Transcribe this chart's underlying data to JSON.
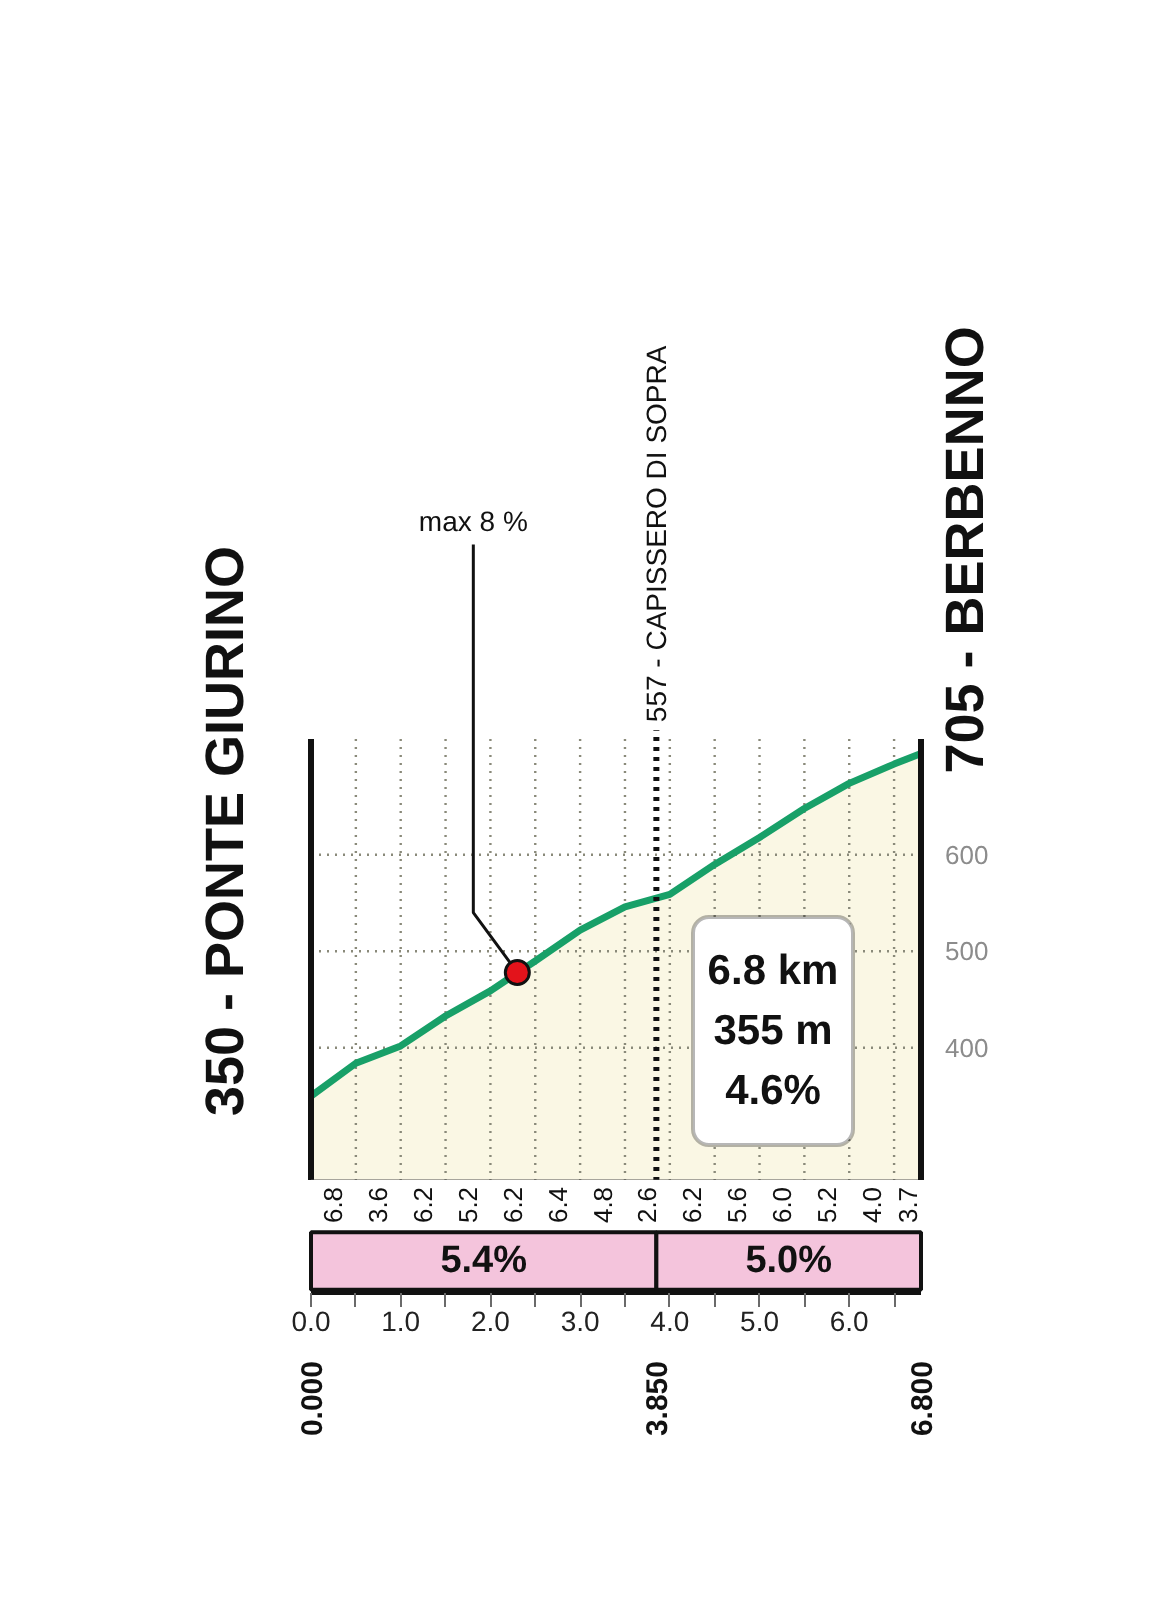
{
  "chart_data": [
    {
      "type": "area",
      "x": [
        0,
        0.5,
        1,
        1.5,
        2,
        2.5,
        3,
        3.5,
        4,
        4.5,
        5,
        5.5,
        6,
        6.5,
        6.8
      ],
      "values": [
        350,
        384,
        402,
        433,
        459,
        490,
        522,
        546,
        559,
        590,
        618,
        648,
        674,
        694,
        705
      ],
      "color": "#18a068",
      "xlim": [
        0,
        6.8
      ],
      "ylim": [
        262,
        720
      ],
      "xticks": [
        {
          "value": 0,
          "label": null
        },
        {
          "value": 0.5,
          "label": null
        },
        {
          "value": 1,
          "label": null
        },
        {
          "value": 1.5,
          "label": null
        },
        {
          "value": 2,
          "label": null
        },
        {
          "value": 2.5,
          "label": null
        },
        {
          "value": 3,
          "label": null
        },
        {
          "value": 3.5,
          "label": null
        },
        {
          "value": 4,
          "label": null
        },
        {
          "value": 4.5,
          "label": null
        },
        {
          "value": 5,
          "label": null
        },
        {
          "value": 5.5,
          "label": null
        },
        {
          "value": 6,
          "label": null
        },
        {
          "value": 6.5,
          "label": null
        }
      ],
      "yticks": [
        400,
        500,
        600
      ],
      "tick_labels": "y",
      "grid": true,
      "ref_lines": [
        {
          "axis": "x",
          "value": 0,
          "label": "350 - PONTE GIURINO"
        },
        {
          "axis": "x",
          "value": 3.85,
          "label": "557 - CAPISSERO DI SOPRA",
          "line_style": "dotted"
        }
      ],
      "annotations": [
        {
          "text": "max 8 %",
          "x": 2.3,
          "y": 478
        },
        {
          "text": "705 - BERBENNO",
          "x": 6.8,
          "y": 705
        },
        "6.8 km",
        "355 m",
        "4.6%"
      ]
    },
    {
      "type": "bar",
      "orientation": "horizontal",
      "stacked": true,
      "categories": [
        null
      ],
      "series": [
        {
          "color": "#f4c4dc",
          "values": [
            3.85
          ]
        },
        {
          "color": "#f4c4dc",
          "values": [
            2.95
          ]
        }
      ],
      "xlim": [
        0,
        6.8
      ],
      "xticks": [
        {
          "value": 0,
          "label": "0.0"
        },
        {
          "value": 0.5,
          "label": null
        },
        {
          "value": 1,
          "label": "1.0"
        },
        {
          "value": 1.5,
          "label": null
        },
        {
          "value": 2,
          "label": "2.0"
        },
        {
          "value": 2.5,
          "label": null
        },
        {
          "value": 3,
          "label": "3.0"
        },
        {
          "value": 3.5,
          "label": null
        },
        {
          "value": 4,
          "label": "4.0"
        },
        {
          "value": 4.5,
          "label": null
        },
        {
          "value": 5,
          "label": "5.0"
        },
        {
          "value": 5.5,
          "label": null
        },
        {
          "value": 6,
          "label": "6.0"
        },
        {
          "value": 6.5,
          "label": null
        }
      ],
      "x2lim": [
        0,
        6.8
      ],
      "x2ticks": [
        {
          "value": 0,
          "label": "0.000"
        },
        {
          "value": 3.85,
          "label": "3.850"
        },
        {
          "value": 6.8,
          "label": "6.800"
        }
      ],
      "annotations": [
        "5.4%",
        "5.0%",
        "6.8",
        "3.6",
        "6.2",
        "5.2",
        "6.2",
        "6.4",
        "4.8",
        "2.6",
        "6.2",
        "5.6",
        "6.0",
        "5.2",
        "4.0",
        "3.7"
      ]
    }
  ]
}
